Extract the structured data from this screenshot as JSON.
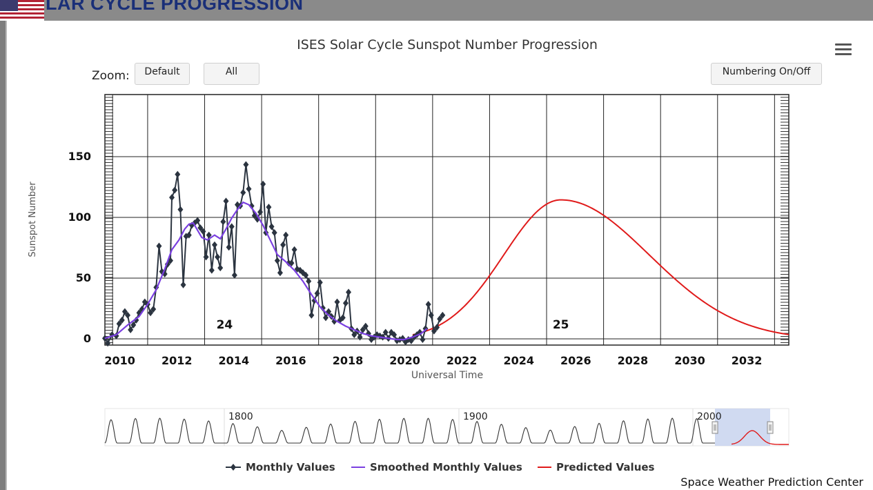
{
  "page": {
    "header_title": "LAR CYCLE PROGRESSION",
    "credit": "Space Weather Prediction Center"
  },
  "chart_data": {
    "type": "line",
    "title": "ISES Solar Cycle Sunspot Number Progression",
    "xlabel": "Universal Time",
    "ylabel": "Sunspot Number",
    "xlim": [
      2009.5,
      2033.5
    ],
    "ylim": [
      0,
      200
    ],
    "x_ticks": [
      2010,
      2012,
      2014,
      2016,
      2018,
      2020,
      2022,
      2024,
      2026,
      2028,
      2030,
      2032
    ],
    "y_ticks": [
      0,
      50,
      100,
      150
    ],
    "grid": true,
    "legend_position": "bottom-center",
    "cycle_labels": [
      {
        "x": 2013.7,
        "y": 5,
        "text": "24"
      },
      {
        "x": 2025.5,
        "y": 5,
        "text": "25"
      }
    ],
    "series": [
      {
        "name": "Monthly Values",
        "color": "#2b3440",
        "marker": "diamond",
        "points": [
          [
            2009.5,
            1
          ],
          [
            2009.6,
            -3
          ],
          [
            2009.75,
            4
          ],
          [
            2009.9,
            3
          ],
          [
            2010.0,
            13
          ],
          [
            2010.1,
            16
          ],
          [
            2010.2,
            23
          ],
          [
            2010.3,
            20
          ],
          [
            2010.4,
            8
          ],
          [
            2010.5,
            12
          ],
          [
            2010.6,
            16
          ],
          [
            2010.7,
            22
          ],
          [
            2010.8,
            25
          ],
          [
            2010.9,
            31
          ],
          [
            2011.0,
            29
          ],
          [
            2011.1,
            22
          ],
          [
            2011.2,
            25
          ],
          [
            2011.3,
            43
          ],
          [
            2011.4,
            77
          ],
          [
            2011.5,
            56
          ],
          [
            2011.6,
            54
          ],
          [
            2011.7,
            62
          ],
          [
            2011.8,
            65
          ],
          [
            2011.85,
            117
          ],
          [
            2011.95,
            123
          ],
          [
            2012.05,
            136
          ],
          [
            2012.15,
            107
          ],
          [
            2012.25,
            45
          ],
          [
            2012.35,
            85
          ],
          [
            2012.45,
            86
          ],
          [
            2012.55,
            94
          ],
          [
            2012.65,
            96
          ],
          [
            2012.75,
            98
          ],
          [
            2012.85,
            92
          ],
          [
            2012.95,
            89
          ],
          [
            2013.05,
            68
          ],
          [
            2013.15,
            86
          ],
          [
            2013.25,
            57
          ],
          [
            2013.35,
            78
          ],
          [
            2013.45,
            68
          ],
          [
            2013.55,
            59
          ],
          [
            2013.65,
            97
          ],
          [
            2013.75,
            114
          ],
          [
            2013.85,
            76
          ],
          [
            2013.95,
            93
          ],
          [
            2014.05,
            53
          ],
          [
            2014.15,
            111
          ],
          [
            2014.25,
            110
          ],
          [
            2014.35,
            121
          ],
          [
            2014.45,
            144
          ],
          [
            2014.55,
            124
          ],
          [
            2014.65,
            110
          ],
          [
            2014.75,
            102
          ],
          [
            2014.85,
            99
          ],
          [
            2014.95,
            105
          ],
          [
            2015.05,
            128
          ],
          [
            2015.15,
            88
          ],
          [
            2015.25,
            109
          ],
          [
            2015.35,
            93
          ],
          [
            2015.45,
            88
          ],
          [
            2015.55,
            65
          ],
          [
            2015.65,
            55
          ],
          [
            2015.75,
            78
          ],
          [
            2015.85,
            86
          ],
          [
            2015.95,
            63
          ],
          [
            2016.05,
            63
          ],
          [
            2016.15,
            74
          ],
          [
            2016.25,
            58
          ],
          [
            2016.35,
            57
          ],
          [
            2016.45,
            55
          ],
          [
            2016.55,
            53
          ],
          [
            2016.65,
            48
          ],
          [
            2016.75,
            20
          ],
          [
            2016.85,
            32
          ],
          [
            2016.95,
            38
          ],
          [
            2017.05,
            47
          ],
          [
            2017.15,
            26
          ],
          [
            2017.25,
            18
          ],
          [
            2017.35,
            23
          ],
          [
            2017.45,
            19
          ],
          [
            2017.55,
            15
          ],
          [
            2017.65,
            31
          ],
          [
            2017.75,
            16
          ],
          [
            2017.85,
            18
          ],
          [
            2017.95,
            30
          ],
          [
            2018.05,
            39
          ],
          [
            2018.15,
            9
          ],
          [
            2018.25,
            4
          ],
          [
            2018.35,
            7
          ],
          [
            2018.45,
            2
          ],
          [
            2018.55,
            8
          ],
          [
            2018.65,
            11
          ],
          [
            2018.75,
            5
          ],
          [
            2018.85,
            0
          ],
          [
            2018.95,
            2
          ],
          [
            2019.05,
            4
          ],
          [
            2019.15,
            3
          ],
          [
            2019.25,
            2
          ],
          [
            2019.35,
            6
          ],
          [
            2019.45,
            1
          ],
          [
            2019.55,
            6
          ],
          [
            2019.65,
            4
          ],
          [
            2019.75,
            -1
          ],
          [
            2019.85,
            0
          ],
          [
            2019.95,
            1
          ],
          [
            2020.05,
            -2
          ],
          [
            2020.15,
            0
          ],
          [
            2020.25,
            -1
          ],
          [
            2020.35,
            2
          ],
          [
            2020.45,
            4
          ],
          [
            2020.55,
            6
          ],
          [
            2020.65,
            0
          ],
          [
            2020.75,
            9
          ],
          [
            2020.85,
            29
          ],
          [
            2020.95,
            20
          ],
          [
            2021.05,
            7
          ],
          [
            2021.15,
            10
          ],
          [
            2021.25,
            17
          ],
          [
            2021.35,
            20
          ]
        ]
      },
      {
        "name": "Smoothed Monthly Values",
        "color": "#7a3fe0",
        "points": [
          [
            2009.5,
            1
          ],
          [
            2009.9,
            4
          ],
          [
            2010.3,
            12
          ],
          [
            2010.7,
            19
          ],
          [
            2011.0,
            29
          ],
          [
            2011.3,
            41
          ],
          [
            2011.6,
            58
          ],
          [
            2011.85,
            74
          ],
          [
            2012.1,
            82
          ],
          [
            2012.3,
            91
          ],
          [
            2012.45,
            95
          ],
          [
            2012.6,
            96
          ],
          [
            2012.75,
            90
          ],
          [
            2012.9,
            84
          ],
          [
            2013.1,
            82
          ],
          [
            2013.35,
            86
          ],
          [
            2013.55,
            83
          ],
          [
            2013.75,
            91
          ],
          [
            2013.95,
            100
          ],
          [
            2014.15,
            107
          ],
          [
            2014.35,
            113
          ],
          [
            2014.55,
            111
          ],
          [
            2014.8,
            104
          ],
          [
            2015.05,
            94
          ],
          [
            2015.3,
            82
          ],
          [
            2015.55,
            70
          ],
          [
            2015.85,
            64
          ],
          [
            2016.15,
            57
          ],
          [
            2016.45,
            48
          ],
          [
            2016.75,
            37
          ],
          [
            2017.05,
            27
          ],
          [
            2017.35,
            20
          ],
          [
            2017.65,
            15
          ],
          [
            2017.95,
            11
          ],
          [
            2018.25,
            8
          ],
          [
            2018.55,
            5
          ],
          [
            2018.85,
            3
          ],
          [
            2019.15,
            2
          ],
          [
            2019.45,
            1
          ],
          [
            2019.75,
            0
          ],
          [
            2020.0,
            0
          ],
          [
            2020.3,
            2
          ],
          [
            2020.6,
            5
          ],
          [
            2020.8,
            9
          ]
        ]
      },
      {
        "name": "Predicted Values",
        "color": "#e01a1a",
        "peak_x": 2025.5,
        "peak_y": 115,
        "start_x": 2020.3,
        "end_x": 2033.5
      }
    ]
  },
  "navigator": {
    "labels": [
      "1800",
      "1900",
      "2000"
    ]
  },
  "controls": {
    "zoom_label": "Zoom:",
    "zoom_default": "Default",
    "zoom_all": "All",
    "numbering": "Numbering On/Off"
  }
}
